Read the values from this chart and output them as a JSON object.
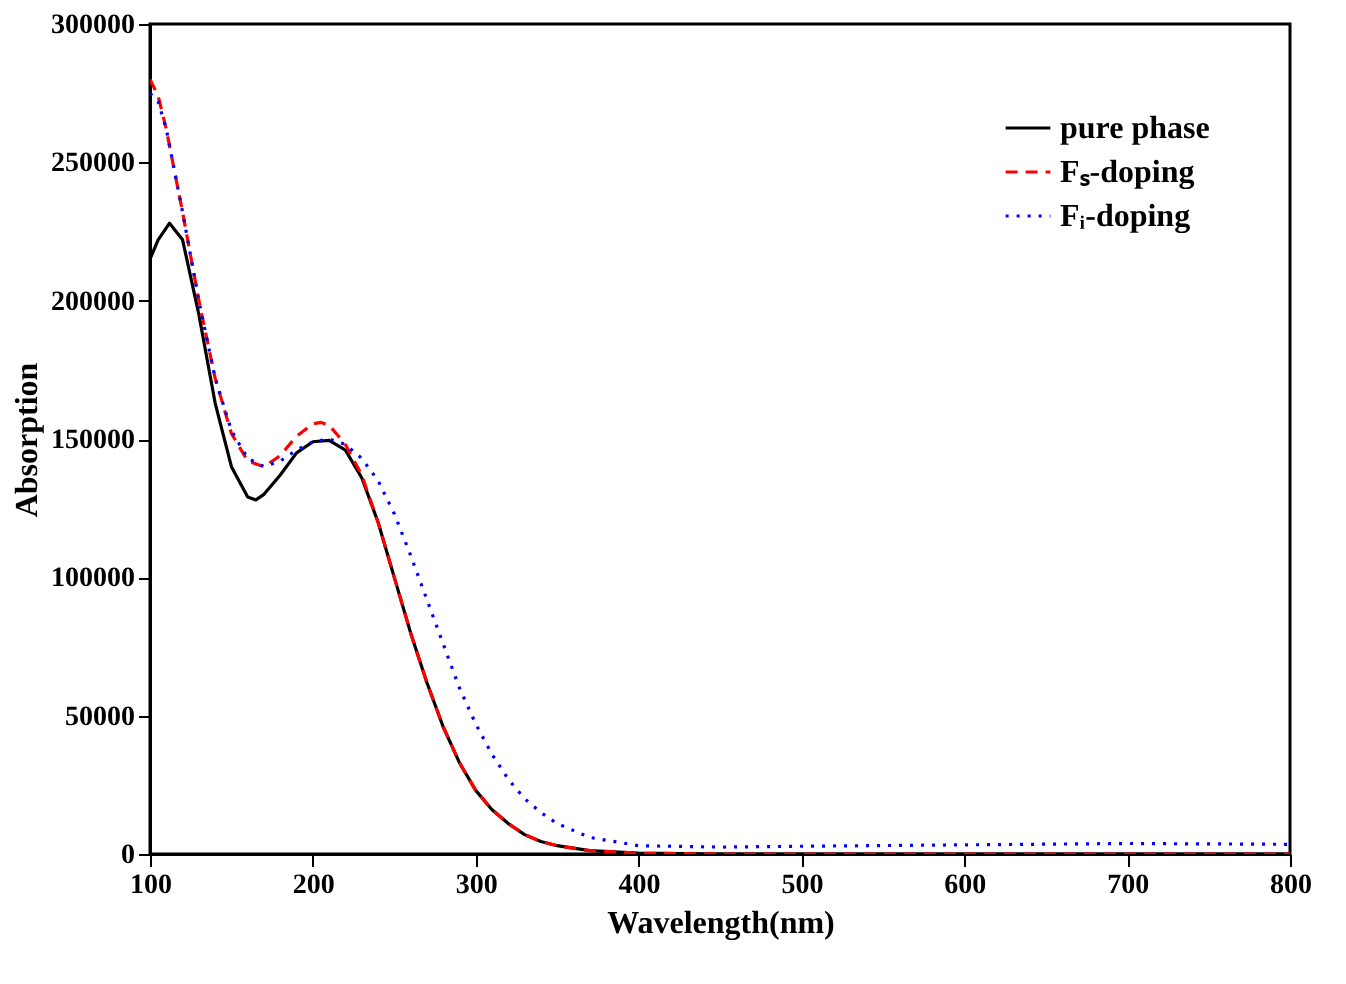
{
  "chart_data": {
    "type": "line",
    "xlabel": "Wavelength(nm)",
    "ylabel": "Absorption",
    "xlim": [
      100,
      800
    ],
    "ylim": [
      0,
      300000
    ],
    "xticks": [
      100,
      200,
      300,
      400,
      500,
      600,
      700,
      800
    ],
    "yticks": [
      0,
      50000,
      100000,
      150000,
      200000,
      250000,
      300000
    ],
    "grid": false,
    "legend": "top right",
    "marker": "none",
    "series": [
      {
        "name": "pure phase",
        "color": "#000000",
        "line_style": "solid",
        "x": [
          100,
          105,
          112,
          120,
          130,
          140,
          150,
          160,
          165,
          170,
          180,
          190,
          200,
          210,
          220,
          230,
          240,
          250,
          260,
          270,
          280,
          290,
          300,
          310,
          320,
          330,
          340,
          350,
          370,
          400,
          450,
          500,
          600,
          700,
          800
        ],
        "values": [
          215000,
          222000,
          228000,
          222000,
          195000,
          163000,
          140000,
          129000,
          128000,
          130000,
          137000,
          145000,
          149000,
          149500,
          146000,
          136000,
          120000,
          100000,
          80000,
          62000,
          46000,
          33000,
          23000,
          16000,
          11000,
          7000,
          4500,
          3000,
          1200,
          300,
          0,
          0,
          0,
          0,
          0
        ]
      },
      {
        "name": "Fₛ-doping",
        "color": "#ff0000",
        "line_style": "dashed",
        "x": [
          100,
          105,
          110,
          120,
          130,
          140,
          150,
          160,
          170,
          180,
          190,
          200,
          205,
          210,
          220,
          230,
          240,
          250,
          260,
          270,
          280,
          290,
          300,
          310,
          320,
          330,
          340,
          350,
          370,
          400,
          450,
          500,
          600,
          700,
          800
        ],
        "values": [
          280000,
          274000,
          262000,
          232000,
          200000,
          172000,
          152000,
          142000,
          140000,
          144000,
          151000,
          155500,
          156000,
          155000,
          148000,
          137000,
          120000,
          100000,
          80000,
          62000,
          46000,
          33000,
          23000,
          16000,
          11000,
          7000,
          4500,
          3000,
          1200,
          300,
          0,
          0,
          0,
          0,
          0
        ]
      },
      {
        "name": "Fᵢ-doping",
        "color": "#0000ff",
        "line_style": "dotted",
        "x": [
          100,
          105,
          110,
          120,
          130,
          140,
          150,
          160,
          170,
          180,
          190,
          200,
          210,
          220,
          230,
          240,
          250,
          260,
          270,
          280,
          290,
          300,
          310,
          320,
          330,
          340,
          350,
          370,
          400,
          450,
          500,
          600,
          700,
          800
        ],
        "values": [
          275000,
          272000,
          262000,
          232000,
          200000,
          172000,
          153000,
          143000,
          140000,
          142000,
          146000,
          149000,
          150000,
          148000,
          143000,
          135000,
          123000,
          108000,
          92000,
          76000,
          60000,
          47000,
          36000,
          27000,
          20000,
          15000,
          11000,
          6000,
          3000,
          2500,
          2800,
          3300,
          3800,
          3500
        ]
      }
    ]
  }
}
